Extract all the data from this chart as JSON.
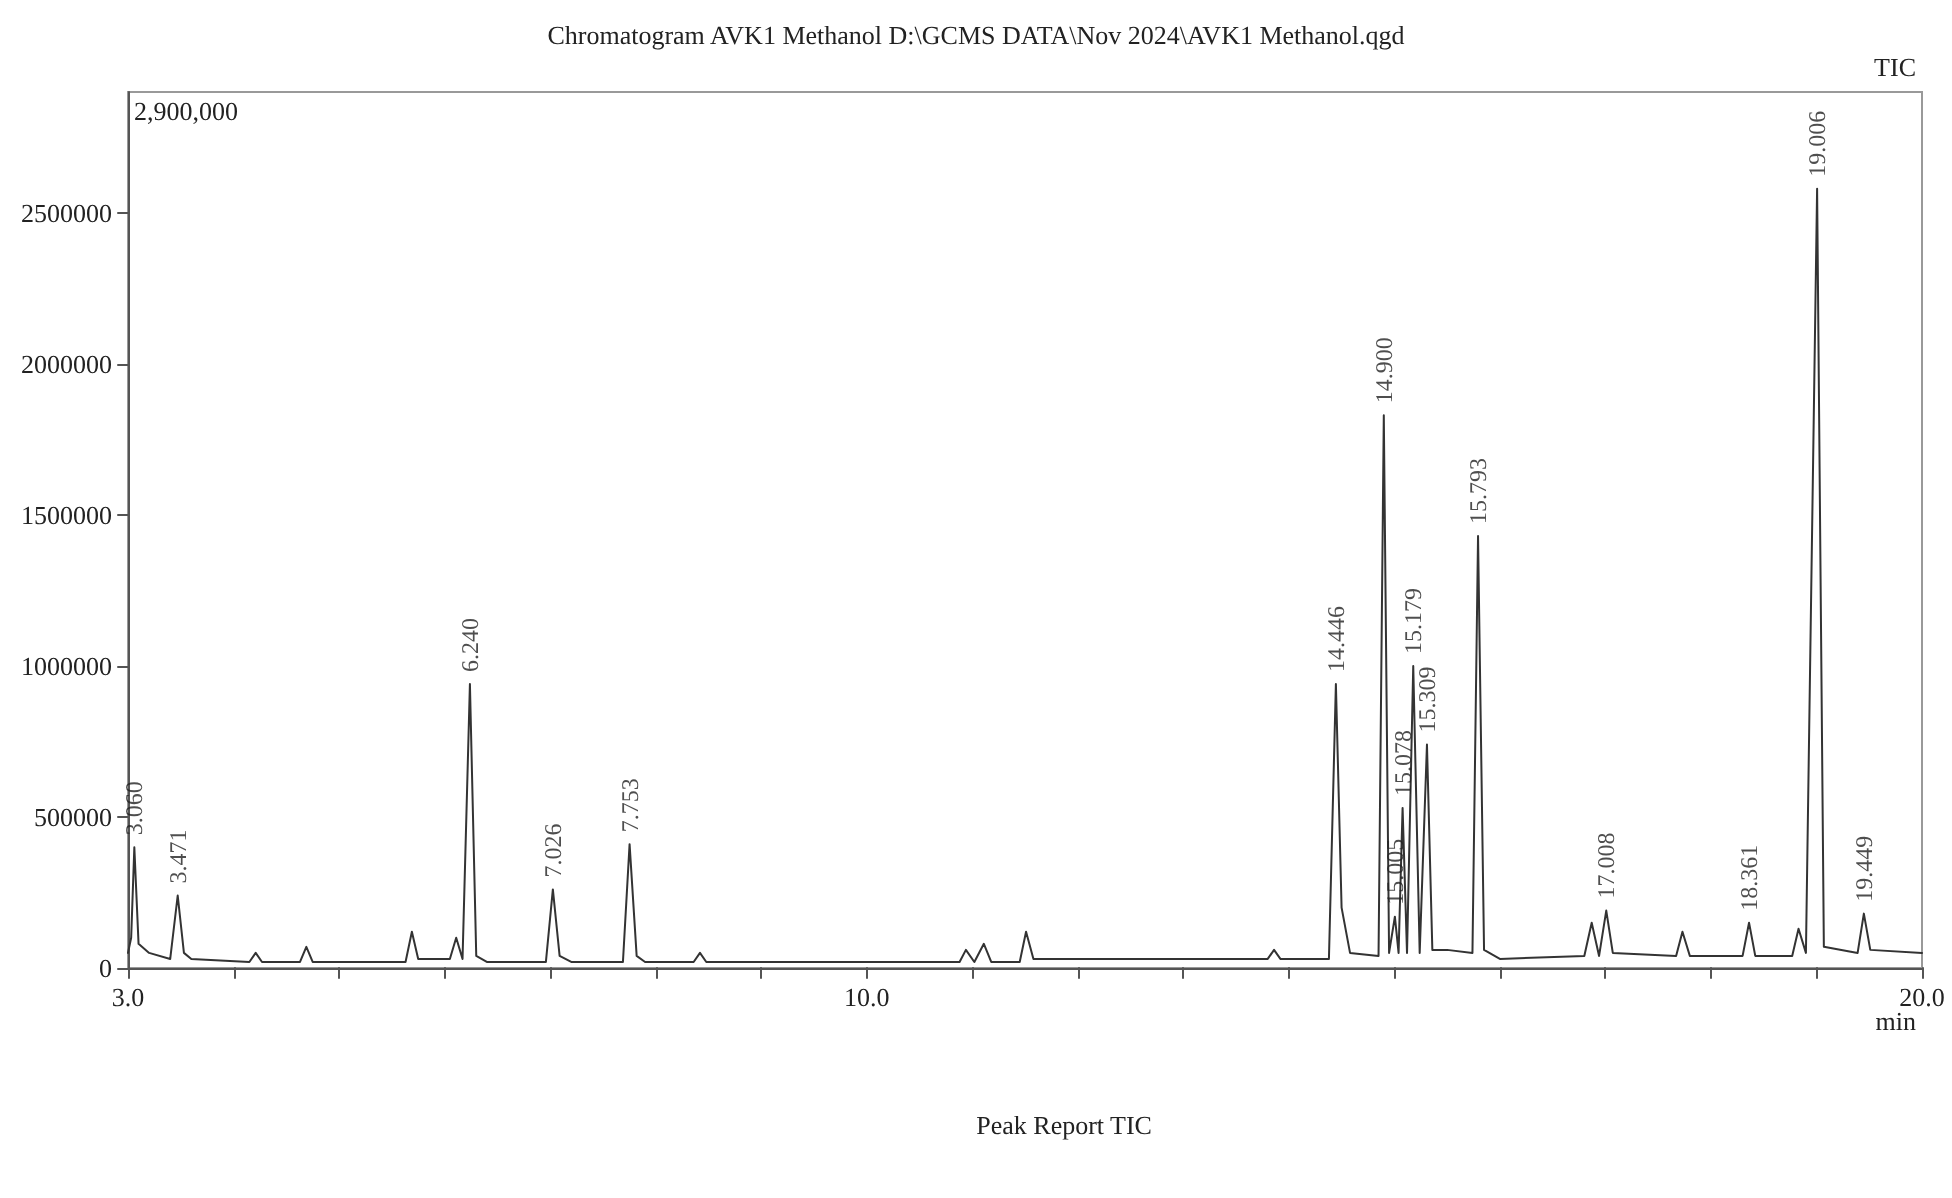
{
  "chart_data": {
    "type": "line",
    "title": "Chromatogram AVK1 Methanol D:\\GCMS DATA\\Nov 2024\\AVK1 Methanol.qgd",
    "xlabel": "min",
    "annotations": [
      "TIC",
      "2,900,000",
      "Peak Report TIC",
      {
        "text": "3.060",
        "x": 3.06,
        "y": 400000
      },
      {
        "text": "3.471",
        "x": 3.471,
        "y": 240000
      },
      {
        "text": "6.240",
        "x": 6.24,
        "y": 940000
      },
      {
        "text": "7.026",
        "x": 7.026,
        "y": 260000
      },
      {
        "text": "7.753",
        "x": 7.753,
        "y": 410000
      },
      {
        "text": "14.446",
        "x": 14.446,
        "y": 940000
      },
      {
        "text": "14.900",
        "x": 14.9,
        "y": 1830000
      },
      {
        "text": "15.005",
        "x": 15.005,
        "y": 170000
      },
      {
        "text": "15.078",
        "x": 15.078,
        "y": 530000
      },
      {
        "text": "15.179",
        "x": 15.179,
        "y": 1000000
      },
      {
        "text": "15.309",
        "x": 15.309,
        "y": 740000
      },
      {
        "text": "15.793",
        "x": 15.793,
        "y": 1430000
      },
      {
        "text": "17.008",
        "x": 17.008,
        "y": 190000
      },
      {
        "text": "18.361",
        "x": 18.361,
        "y": 150000
      },
      {
        "text": "19.006",
        "x": 19.006,
        "y": 2580000
      },
      {
        "text": "19.449",
        "x": 19.449,
        "y": 180000
      }
    ],
    "xlim": [
      3.0,
      20.0
    ],
    "xticks": [
      {
        "value": 3,
        "label": "3.0"
      },
      {
        "value": 4,
        "label": null
      },
      {
        "value": 5,
        "label": null
      },
      {
        "value": 6,
        "label": null
      },
      {
        "value": 7,
        "label": null
      },
      {
        "value": 8,
        "label": null
      },
      {
        "value": 9,
        "label": null
      },
      {
        "value": 10,
        "label": "10.0"
      },
      {
        "value": 11,
        "label": null
      },
      {
        "value": 12,
        "label": null
      },
      {
        "value": 13,
        "label": null
      },
      {
        "value": 14,
        "label": null
      },
      {
        "value": 15,
        "label": null
      },
      {
        "value": 16,
        "label": null
      },
      {
        "value": 17,
        "label": null
      },
      {
        "value": 18,
        "label": null
      },
      {
        "value": 19,
        "label": null
      },
      {
        "value": 20,
        "label": "20.0"
      }
    ],
    "ylim": [
      0,
      2900000
    ],
    "yticks": [
      0,
      500000,
      1000000,
      1500000,
      2000000,
      2500000
    ],
    "grid": false,
    "marker": "none",
    "line_style": "solid",
    "x": [
      3.0,
      3.03,
      3.06,
      3.1,
      3.2,
      3.4,
      3.471,
      3.53,
      3.6,
      4.15,
      4.21,
      4.27,
      4.63,
      4.69,
      4.75,
      5.63,
      5.69,
      5.75,
      6.05,
      6.11,
      6.17,
      6.24,
      6.3,
      6.4,
      6.96,
      7.026,
      7.09,
      7.2,
      7.69,
      7.753,
      7.82,
      7.9,
      8.36,
      8.42,
      8.48,
      10.88,
      10.94,
      11.02,
      11.11,
      11.18,
      11.45,
      11.51,
      11.58,
      13.8,
      13.86,
      13.92,
      14.38,
      14.446,
      14.5,
      14.58,
      14.85,
      14.9,
      14.95,
      15.005,
      15.04,
      15.078,
      15.12,
      15.179,
      15.24,
      15.309,
      15.36,
      15.5,
      15.74,
      15.793,
      15.85,
      16.0,
      16.8,
      16.87,
      16.94,
      17.008,
      17.07,
      17.67,
      17.73,
      17.8,
      18.3,
      18.361,
      18.42,
      18.77,
      18.83,
      18.9,
      19.006,
      19.07,
      19.39,
      19.449,
      19.51,
      20.0
    ],
    "series": [
      {
        "color": "#333333",
        "values": [
          50000,
          100000,
          400000,
          80000,
          50000,
          30000,
          240000,
          50000,
          30000,
          20000,
          50000,
          20000,
          20000,
          70000,
          20000,
          20000,
          120000,
          30000,
          30000,
          100000,
          30000,
          940000,
          40000,
          20000,
          20000,
          260000,
          40000,
          20000,
          20000,
          410000,
          40000,
          20000,
          20000,
          50000,
          20000,
          20000,
          60000,
          20000,
          80000,
          20000,
          20000,
          120000,
          30000,
          30000,
          60000,
          30000,
          30000,
          940000,
          200000,
          50000,
          40000,
          1830000,
          50000,
          170000,
          50000,
          530000,
          50000,
          1000000,
          50000,
          740000,
          60000,
          60000,
          50000,
          1430000,
          60000,
          30000,
          40000,
          150000,
          40000,
          190000,
          50000,
          40000,
          120000,
          40000,
          40000,
          150000,
          40000,
          40000,
          130000,
          50000,
          2580000,
          70000,
          50000,
          180000,
          60000,
          50000
        ]
      }
    ]
  }
}
